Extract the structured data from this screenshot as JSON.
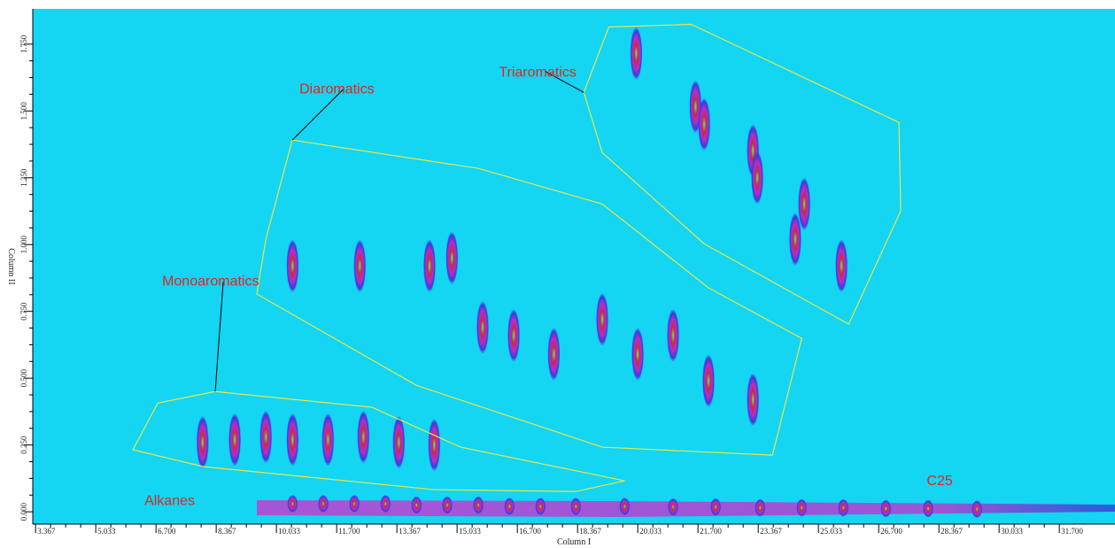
{
  "chart_data": {
    "type": "contour",
    "xlabel": "Column I",
    "ylabel": "Column II",
    "xlim": [
      3.29,
      33.24
    ],
    "ylim": [
      -0.046,
      1.882
    ],
    "xticks": [
      3.367,
      5.033,
      {
        "value": 6.7,
        "label": "6.700"
      },
      8.367,
      10.033,
      {
        "value": 11.7,
        "label": "11.700"
      },
      13.367,
      15.033,
      {
        "value": 16.7,
        "label": "16.700"
      },
      18.367,
      20.033,
      {
        "value": 21.7,
        "label": "21.700"
      },
      23.367,
      25.033,
      {
        "value": 26.7,
        "label": "26.700"
      },
      28.367,
      30.033,
      {
        "value": 31.7,
        "label": "31.700"
      }
    ],
    "yticks": [
      {
        "value": 0,
        "label": "0.000"
      },
      {
        "value": 0.25,
        "label": "0.250"
      },
      {
        "value": 0.5,
        "label": "0.500"
      },
      {
        "value": 0.75,
        "label": "0.750"
      },
      {
        "value": 1,
        "label": "1.000"
      },
      {
        "value": 1.25,
        "label": "1.250"
      },
      {
        "value": 1.5,
        "label": "1.500"
      },
      {
        "value": 1.75,
        "label": "1.750"
      }
    ],
    "background": "#14d5f2",
    "region_color": "#e6e84a",
    "label_color": "#e0261e",
    "peaks": {
      "x": [
        10.48,
        11.33,
        12.19,
        13.05,
        13.91,
        14.76,
        15.62,
        16.48,
        17.34,
        18.32,
        19.67,
        21.01,
        22.19,
        23.42,
        24.57,
        25.72,
        26.9,
        28.07,
        29.42,
        7.99,
        8.88,
        9.74,
        10.48,
        11.46,
        12.44,
        13.42,
        14.4,
        10.48,
        12.34,
        14.27,
        14.89,
        15.74,
        16.6,
        17.71,
        19.05,
        20.03,
        21.01,
        21.99,
        23.22,
        19.99,
        21.63,
        21.87,
        23.22,
        23.34,
        24.64,
        24.39,
        25.67
      ],
      "y": [
        0.03,
        0.03,
        0.03,
        0.03,
        0.025,
        0.025,
        0.025,
        0.02,
        0.02,
        0.02,
        0.02,
        0.018,
        0.018,
        0.015,
        0.015,
        0.015,
        0.012,
        0.012,
        0.01,
        0.26,
        0.27,
        0.28,
        0.27,
        0.27,
        0.28,
        0.26,
        0.25,
        0.92,
        0.92,
        0.92,
        0.95,
        0.69,
        0.66,
        0.59,
        0.72,
        0.59,
        0.66,
        0.49,
        0.42,
        1.715,
        1.516,
        1.45,
        1.351,
        1.25,
        1.152,
        1.02,
        0.92
      ]
    },
    "regions": [
      {
        "name": "Triaromatics",
        "x": [
          19.23,
          21.51,
          27.26,
          27.31,
          25.87,
          21.87,
          19.05,
          18.54
        ],
        "y": [
          1.814,
          1.824,
          1.457,
          1.126,
          0.702,
          1.003,
          1.344,
          1.569
        ],
        "label_x": 16.19,
        "label_y": 1.642,
        "leader_x": [
          17.46,
          18.54
        ],
        "leader_y": [
          1.649,
          1.569
        ]
      },
      {
        "name": "Diaromatics",
        "x": [
          10.47,
          15.62,
          19.05,
          21.99,
          24.57,
          23.76,
          19.05,
          13.91,
          9.49,
          9.74
        ],
        "y": [
          1.391,
          1.285,
          1.152,
          0.838,
          0.649,
          0.212,
          0.242,
          0.473,
          0.815,
          1.02
        ],
        "label_x": 10.67,
        "label_y": 1.579,
        "leader_x": [
          11.9,
          10.47
        ],
        "leader_y": [
          1.583,
          1.391
        ]
      },
      {
        "name": "Monoaromatics",
        "x": [
          6.75,
          8.34,
          12.68,
          15.13,
          19.67,
          18.32,
          14.4,
          8.02,
          6.06
        ],
        "y": [
          0.407,
          0.45,
          0.391,
          0.242,
          0.116,
          0.076,
          0.083,
          0.169,
          0.232
        ],
        "label_x": 6.87,
        "label_y": 0.861,
        "leader_x": [
          8.56,
          8.34
        ],
        "leader_y": [
          0.861,
          0.45
        ]
      }
    ],
    "annotations": [
      {
        "text": "Alkanes",
        "x": 6.38,
        "y": 0.04
      },
      {
        "text": "C25",
        "x": 28.03,
        "y": 0.113
      }
    ]
  }
}
